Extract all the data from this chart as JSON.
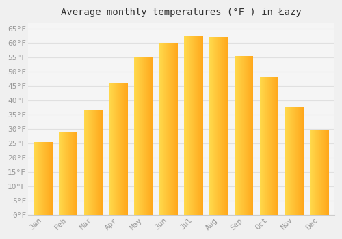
{
  "title": "Average monthly temperatures (°F ) in Łazy",
  "months": [
    "Jan",
    "Feb",
    "Mar",
    "Apr",
    "May",
    "Jun",
    "Jul",
    "Aug",
    "Sep",
    "Oct",
    "Nov",
    "Dec"
  ],
  "values": [
    25.5,
    29,
    36.5,
    46,
    55,
    60,
    62.5,
    62,
    55.5,
    48,
    37.5,
    29.5
  ],
  "bar_color_left": "#FFB300",
  "bar_color_right": "#FFA000",
  "bar_color_mid": "#FFCA28",
  "background_color": "#f0f0f0",
  "plot_bg_color": "#f5f5f5",
  "grid_color": "#e0e0e0",
  "ylim": [
    0,
    67
  ],
  "yticks": [
    0,
    5,
    10,
    15,
    20,
    25,
    30,
    35,
    40,
    45,
    50,
    55,
    60,
    65
  ],
  "ytick_labels": [
    "0°F",
    "5°F",
    "10°F",
    "15°F",
    "20°F",
    "25°F",
    "30°F",
    "35°F",
    "40°F",
    "45°F",
    "50°F",
    "55°F",
    "60°F",
    "65°F"
  ],
  "tick_fontsize": 8,
  "title_fontsize": 10,
  "tick_color": "#999999",
  "font_family": "monospace",
  "bar_width": 0.75
}
